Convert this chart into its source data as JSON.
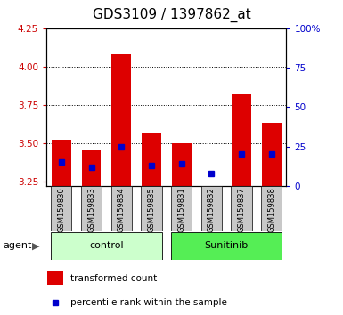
{
  "title": "GDS3109 / 1397862_at",
  "samples": [
    "GSM159830",
    "GSM159833",
    "GSM159834",
    "GSM159835",
    "GSM159831",
    "GSM159832",
    "GSM159837",
    "GSM159838"
  ],
  "red_values": [
    3.52,
    3.45,
    4.08,
    3.56,
    3.5,
    3.22,
    3.82,
    3.63
  ],
  "blue_percentiles": [
    15,
    12,
    25,
    13,
    14,
    8,
    20,
    20
  ],
  "bar_bottom": 3.22,
  "ylim_left": [
    3.22,
    4.25
  ],
  "ylim_right": [
    0,
    100
  ],
  "yticks_left": [
    3.25,
    3.5,
    3.75,
    4.0,
    4.25
  ],
  "yticks_right": [
    0,
    25,
    50,
    75,
    100
  ],
  "ytick_labels_right": [
    "0",
    "25",
    "50",
    "75",
    "100%"
  ],
  "grid_values": [
    3.5,
    3.75,
    4.0
  ],
  "groups": [
    {
      "label": "control",
      "indices": [
        0,
        1,
        2,
        3
      ],
      "color": "#ccffcc"
    },
    {
      "label": "Sunitinib",
      "indices": [
        4,
        5,
        6,
        7
      ],
      "color": "#55ee55"
    }
  ],
  "bar_color_red": "#dd0000",
  "bar_color_blue": "#0000cc",
  "bg_color_plot": "#ffffff",
  "bg_color_xtick": "#c8c8c8",
  "agent_label": "agent",
  "legend_red": "transformed count",
  "legend_blue": "percentile rank within the sample",
  "title_fontsize": 11,
  "axis_color_left": "#cc0000",
  "axis_color_right": "#0000cc"
}
